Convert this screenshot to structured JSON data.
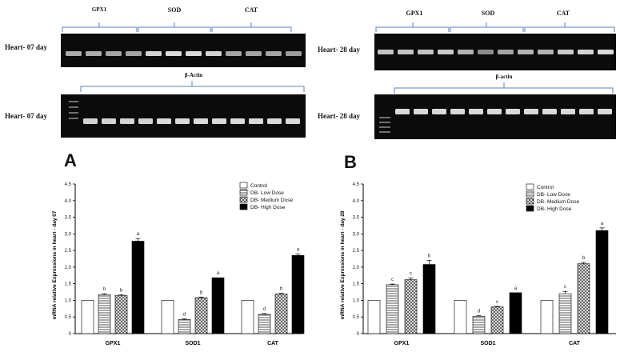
{
  "gels": {
    "left": {
      "row1_label": "Heart- 07 day",
      "row2_label": "Heart- 07 day",
      "genes": [
        "GPX1",
        "SOD",
        "CAT"
      ],
      "actin_label": "β-Actin",
      "target_band_intensity": [
        0.55,
        0.55,
        0.5,
        0.5,
        0.8,
        0.85,
        0.85,
        0.8,
        0.5,
        0.5,
        0.5,
        0.45
      ],
      "actin_band_intensity": [
        0.8,
        0.8,
        0.8,
        0.8,
        0.85,
        0.85,
        0.85,
        0.85,
        0.85,
        0.85,
        0.85,
        0.85
      ]
    },
    "right": {
      "row1_label": "Heart- 28 day",
      "row2_label": "Heart- 28 day",
      "genes": [
        "GPX1",
        "SOD",
        "CAT"
      ],
      "actin_label": "β-actin",
      "target_band_intensity": [
        0.7,
        0.7,
        0.7,
        0.75,
        0.6,
        0.35,
        0.5,
        0.6,
        0.6,
        0.75,
        0.8,
        0.85
      ],
      "actin_band_intensity": [
        0.85,
        0.85,
        0.85,
        0.85,
        0.85,
        0.85,
        0.85,
        0.85,
        0.85,
        0.85,
        0.85,
        0.85
      ]
    }
  },
  "chart_data": [
    {
      "type": "bar",
      "panel_label": "A",
      "ylabel": "mRNA relative Expressions in heart - day 07",
      "ylim": [
        0,
        4.5
      ],
      "yticks": [
        "0",
        "0.5",
        "1.0",
        "1.5",
        "2.0",
        "2.5",
        "3.0",
        "3.5",
        "4.0",
        "4.5"
      ],
      "categories": [
        "GPX1",
        "SOD1",
        "CAT"
      ],
      "legend_position": "top-right",
      "series": [
        {
          "name": "Control",
          "values": [
            1.0,
            1.0,
            1.0
          ],
          "errors": [
            0,
            0,
            0
          ],
          "letters": [
            "",
            "",
            ""
          ],
          "fill": "#ffffff"
        },
        {
          "name": "DB- Low Dose",
          "values": [
            1.17,
            0.42,
            0.58
          ],
          "errors": [
            0.03,
            0.02,
            0.02
          ],
          "letters": [
            "b",
            "d",
            "d"
          ],
          "fill": "#9a9a9a"
        },
        {
          "name": "DB- Medium Dose",
          "values": [
            1.15,
            1.08,
            1.19
          ],
          "errors": [
            0.02,
            0.02,
            0.02
          ],
          "letters": [
            "b",
            "b",
            "b"
          ],
          "fill": "#cfcfcf"
        },
        {
          "name": "DB- High Dose",
          "values": [
            2.78,
            1.68,
            2.35
          ],
          "errors": [
            0.08,
            0.0,
            0.05
          ],
          "letters": [
            "a",
            "a",
            "a"
          ],
          "fill": "#000000"
        }
      ]
    },
    {
      "type": "bar",
      "panel_label": "B",
      "ylabel": "mRNA relative Expressions in heart - day 28",
      "ylim": [
        0,
        4.5
      ],
      "yticks": [
        "0",
        "0.5",
        "1.0",
        "1.5",
        "2.0",
        "2.5",
        "3.0",
        "3.5",
        "4.0",
        "4.5"
      ],
      "categories": [
        "GPX1",
        "SOD1",
        "CAT"
      ],
      "legend_position": "top-right",
      "series": [
        {
          "name": "Control",
          "values": [
            1.0,
            1.0,
            1.0
          ],
          "errors": [
            0,
            0,
            0
          ],
          "letters": [
            "",
            "",
            ""
          ],
          "fill": "#ffffff"
        },
        {
          "name": "DB- Low Dose",
          "values": [
            1.47,
            0.52,
            1.2
          ],
          "errors": [
            0.02,
            0.02,
            0.07
          ],
          "letters": [
            "c",
            "d",
            "c"
          ],
          "fill": "#9a9a9a"
        },
        {
          "name": "DB- Medium Dose",
          "values": [
            1.62,
            0.8,
            2.1
          ],
          "errors": [
            0.05,
            0.02,
            0.04
          ],
          "letters": [
            "c",
            "c",
            "b"
          ],
          "fill": "#cfcfcf"
        },
        {
          "name": "DB- High Dose",
          "values": [
            2.08,
            1.23,
            3.1
          ],
          "errors": [
            0.12,
            0.0,
            0.08
          ],
          "letters": [
            "b",
            "a",
            "a"
          ],
          "fill": "#000000"
        }
      ]
    }
  ],
  "colors": {
    "gel_bg": "#0b0b0b",
    "bracket": "#5b7fc4",
    "band": "#ffffff"
  }
}
